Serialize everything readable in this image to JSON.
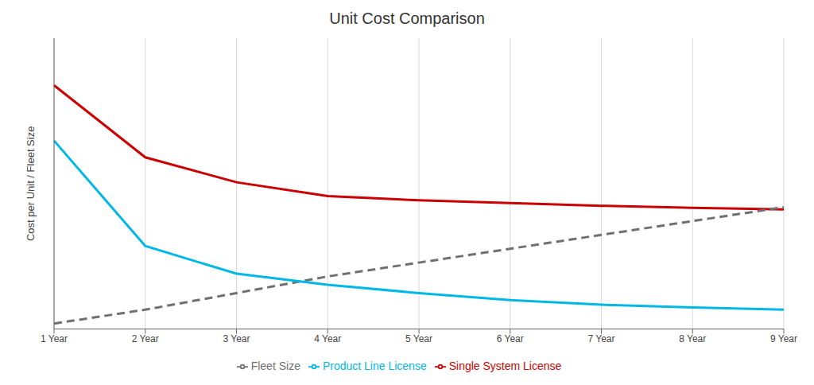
{
  "chart_data": {
    "type": "line",
    "title": "Unit Cost Comparison",
    "ylabel": "Cost per Unit / Fleet Size",
    "categories": [
      "1 Year",
      "2 Year",
      "3 Year",
      "4 Year",
      "5 Year",
      "6 Year",
      "7 Year",
      "8 Year",
      "9 Year"
    ],
    "series": [
      {
        "name": "Single System License",
        "color": "#cc0000",
        "line_style": "solid",
        "values": [
          0.88,
          0.62,
          0.53,
          0.48,
          0.465,
          0.455,
          0.445,
          0.438,
          0.432
        ]
      },
      {
        "name": "Fleet Size",
        "color": "#707070",
        "line_style": "dashed",
        "values": [
          0.02,
          0.07,
          0.13,
          0.19,
          0.24,
          0.29,
          0.34,
          0.39,
          0.44
        ]
      },
      {
        "name": "Product Line License",
        "color": "#00b8e6",
        "line_style": "solid",
        "values": [
          0.68,
          0.3,
          0.2,
          0.16,
          0.13,
          0.105,
          0.088,
          0.078,
          0.07
        ]
      }
    ],
    "ylim": [
      0,
      1.05
    ],
    "yticks": [],
    "grid": true,
    "legend": "bottom",
    "tick_labels": "x"
  }
}
